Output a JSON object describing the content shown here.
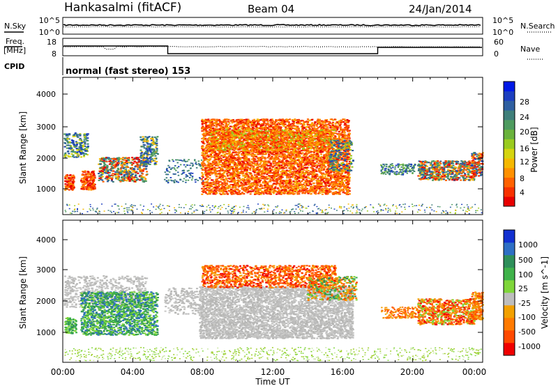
{
  "header": {
    "station": "Hankasalmi (fitACF)",
    "beam": "Beam 04",
    "date": "24/Jan/2014"
  },
  "top_panels": {
    "nsky_label": "N.Sky",
    "nsky_ticks": [
      "10^5",
      "10^0"
    ],
    "nsearch_label": "N.Search",
    "nsearch_ticks": [
      "10^5",
      "10^0"
    ],
    "freq_label_line1": "Freq.",
    "freq_label_line2": "[MHz]",
    "freq_ticks": [
      "18",
      "8"
    ],
    "nave_label": "Nave",
    "nave_ticks": [
      "60",
      "0"
    ],
    "cpid_label": "CPID",
    "cpid_text": "normal (fast stereo) 153"
  },
  "chart_data": [
    {
      "type": "heatmap",
      "title": "",
      "xlabel": "",
      "ylabel": "Slant Range [km]",
      "x_range_hours": [
        0,
        24
      ],
      "ylim_km": [
        200,
        4600
      ],
      "y_ticks": [
        "4000",
        "3000",
        "2000",
        "1000"
      ],
      "colorbar": {
        "label": "Power [dB]",
        "ticks": [
          "28",
          "24",
          "20",
          "16",
          "12",
          "8",
          "4"
        ],
        "range": [
          0,
          30
        ],
        "colors": [
          "#0019e6",
          "#1d3fbf",
          "#2f5fa0",
          "#3f7f7a",
          "#4e9b5f",
          "#6ab23c",
          "#9acb1f",
          "#d5d40f",
          "#f5b800",
          "#ff9100",
          "#ff6200",
          "#f73200",
          "#e80000"
        ]
      }
    },
    {
      "type": "heatmap",
      "title": "",
      "xlabel": "Time UT",
      "ylabel": "Slant Range [km]",
      "x_range_hours": [
        0,
        24
      ],
      "ylim_km": [
        200,
        4600
      ],
      "y_ticks": [
        "4000",
        "3000",
        "2000",
        "1000"
      ],
      "x_ticks": [
        "00:00",
        "04:00",
        "08:00",
        "12:00",
        "16:00",
        "20:00",
        "00:00"
      ],
      "colorbar": {
        "label": "Velocity [m s^-1]",
        "ticks": [
          "1000",
          "500",
          "100",
          "25",
          "-25",
          "-100",
          "-500",
          "-1000"
        ],
        "colors": [
          "#1230d0",
          "#2e6fc4",
          "#2e8f5a",
          "#3fb24a",
          "#7fd63a",
          "#bdbdbd",
          "#f2a000",
          "#ff7a00",
          "#ff4a00",
          "#f00000"
        ]
      }
    }
  ],
  "colors": {
    "power_high": "#e80000",
    "power_mid": "#ff9100",
    "power_low": "#2f5fa0",
    "velocity_gray": "#c0c0bd",
    "velocity_green": "#4e9b5f",
    "velocity_orange": "#ff8a00"
  }
}
